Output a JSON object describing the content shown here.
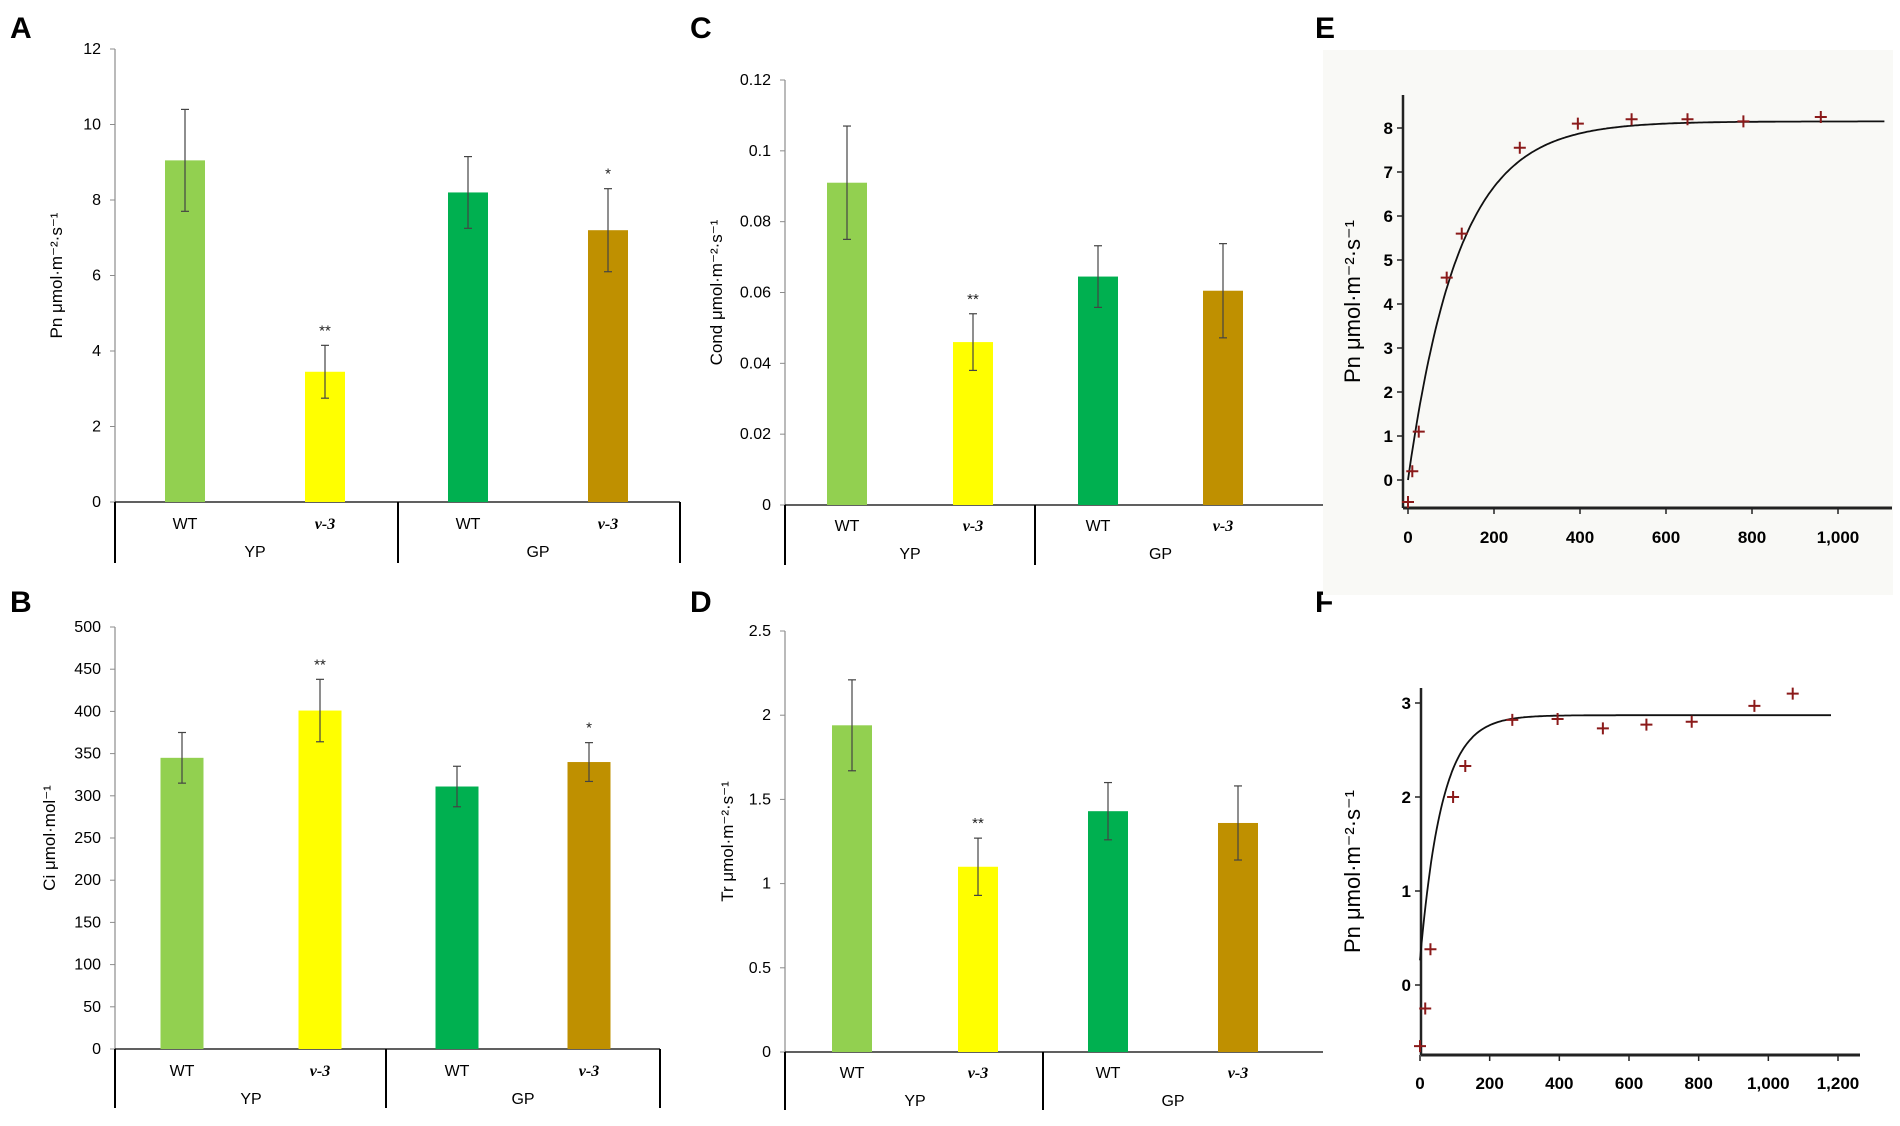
{
  "chart_data": [
    {
      "panel": "A",
      "type": "bar",
      "ylabel": "Pn μmol·m⁻²·s⁻¹",
      "ylim": [
        0,
        12
      ],
      "yticks": [
        0,
        2,
        4,
        6,
        8,
        10,
        12
      ],
      "groups": [
        "YP",
        "GP"
      ],
      "bars": [
        {
          "group": "YP",
          "label": "WT",
          "italic": false,
          "value": 9.05,
          "error": 1.35,
          "color": "#92d050",
          "sig": ""
        },
        {
          "group": "YP",
          "label": "v-3",
          "italic": true,
          "value": 3.45,
          "error": 0.7,
          "color": "#ffff00",
          "sig": "**"
        },
        {
          "group": "GP",
          "label": "WT",
          "italic": false,
          "value": 8.2,
          "error": 0.95,
          "color": "#00b050",
          "sig": ""
        },
        {
          "group": "GP",
          "label": "v-3",
          "italic": true,
          "value": 7.2,
          "error": 1.1,
          "color": "#bf9000",
          "sig": "*"
        }
      ]
    },
    {
      "panel": "B",
      "type": "bar",
      "ylabel": "Ci μmol·mol⁻¹",
      "ylim": [
        0,
        500
      ],
      "yticks": [
        0,
        50,
        100,
        150,
        200,
        250,
        300,
        350,
        400,
        450,
        500
      ],
      "groups": [
        "YP",
        "GP"
      ],
      "bars": [
        {
          "group": "YP",
          "label": "WT",
          "italic": false,
          "value": 345,
          "error": 30,
          "color": "#92d050",
          "sig": ""
        },
        {
          "group": "YP",
          "label": "v-3",
          "italic": true,
          "value": 401,
          "error": 37,
          "color": "#ffff00",
          "sig": "**"
        },
        {
          "group": "GP",
          "label": "WT",
          "italic": false,
          "value": 311,
          "error": 24,
          "color": "#00b050",
          "sig": ""
        },
        {
          "group": "GP",
          "label": "v-3",
          "italic": true,
          "value": 340,
          "error": 23,
          "color": "#bf9000",
          "sig": "*"
        }
      ]
    },
    {
      "panel": "C",
      "type": "bar",
      "ylabel": "Cond μmol·m⁻²·s⁻¹",
      "ylim": [
        0,
        0.12
      ],
      "yticks": [
        "0",
        "0.02",
        "0.04",
        "0.06",
        "0.08",
        "0.1",
        "0.12"
      ],
      "groups": [
        "YP",
        "GP"
      ],
      "bars": [
        {
          "group": "YP",
          "label": "WT",
          "italic": false,
          "value": 0.091,
          "error": 0.016,
          "color": "#92d050",
          "sig": ""
        },
        {
          "group": "YP",
          "label": "v-3",
          "italic": true,
          "value": 0.046,
          "error": 0.008,
          "color": "#ffff00",
          "sig": "**"
        },
        {
          "group": "GP",
          "label": "WT",
          "italic": false,
          "value": 0.0645,
          "error": 0.0087,
          "color": "#00b050",
          "sig": ""
        },
        {
          "group": "GP",
          "label": "v-3",
          "italic": true,
          "value": 0.0605,
          "error": 0.0133,
          "color": "#bf9000",
          "sig": ""
        }
      ]
    },
    {
      "panel": "D",
      "type": "bar",
      "ylabel": "Tr μmol·m⁻²·s⁻¹",
      "ylim": [
        0,
        2.5
      ],
      "yticks": [
        "0",
        "0.5",
        "1",
        "1.5",
        "2",
        "2.5"
      ],
      "groups": [
        "YP",
        "GP"
      ],
      "bars": [
        {
          "group": "YP",
          "label": "WT",
          "italic": false,
          "value": 1.94,
          "error": 0.27,
          "color": "#92d050",
          "sig": ""
        },
        {
          "group": "YP",
          "label": "v-3",
          "italic": true,
          "value": 1.1,
          "error": 0.17,
          "color": "#ffff00",
          "sig": "**"
        },
        {
          "group": "GP",
          "label": "WT",
          "italic": false,
          "value": 1.43,
          "error": 0.17,
          "color": "#00b050",
          "sig": ""
        },
        {
          "group": "GP",
          "label": "v-3",
          "italic": true,
          "value": 1.36,
          "error": 0.22,
          "color": "#bf9000",
          "sig": ""
        }
      ]
    },
    {
      "panel": "E",
      "type": "scatter",
      "ylabel": "Pn μmol·m⁻²·s⁻¹",
      "xlim": [
        0,
        1100
      ],
      "ylim": [
        -0.55,
        8.4
      ],
      "xticks": [
        "0",
        "200",
        "400",
        "600",
        "800",
        "1,000"
      ],
      "xtick_values": [
        0,
        200,
        400,
        600,
        800,
        1000
      ],
      "yticks": [
        0,
        1,
        2,
        3,
        4,
        5,
        6,
        7,
        8
      ],
      "points": [
        [
          0,
          -0.5
        ],
        [
          10,
          0.2
        ],
        [
          25,
          1.1
        ],
        [
          90,
          4.6
        ],
        [
          125,
          5.6
        ],
        [
          260,
          7.55
        ],
        [
          395,
          8.1
        ],
        [
          520,
          8.2
        ],
        [
          650,
          8.2
        ],
        [
          780,
          8.15
        ],
        [
          960,
          8.25
        ]
      ],
      "fit": {
        "model": "Pmax*(1-exp(-k*(x-x0)))",
        "Pmax": 8.15,
        "k": 0.0085,
        "x0": 0
      },
      "marker_color": "#8b1a1a"
    },
    {
      "panel": "F",
      "type": "scatter",
      "ylabel": "Pn μmol·m⁻²·s⁻¹",
      "xlim": [
        0,
        1260
      ],
      "ylim": [
        -0.7,
        3.15
      ],
      "xticks": [
        "0",
        "200",
        "400",
        "600",
        "800",
        "1,000",
        "1,200"
      ],
      "xtick_values": [
        0,
        200,
        400,
        600,
        800,
        1000,
        1200
      ],
      "yticks": [
        0,
        1,
        2,
        3
      ],
      "points": [
        [
          0,
          -0.65
        ],
        [
          15,
          -0.25
        ],
        [
          30,
          0.38
        ],
        [
          95,
          2.0
        ],
        [
          130,
          2.33
        ],
        [
          265,
          2.82
        ],
        [
          395,
          2.83
        ],
        [
          525,
          2.73
        ],
        [
          650,
          2.77
        ],
        [
          780,
          2.8
        ],
        [
          960,
          2.97
        ],
        [
          1070,
          3.1
        ]
      ],
      "fit": {
        "model": "Pmax*(1-exp(-k*(x-x0)))",
        "Pmax": 2.87,
        "k": 0.016,
        "x0": -6
      },
      "marker_color": "#8b1a1a"
    }
  ],
  "panel_letters": [
    "A",
    "B",
    "C",
    "D",
    "E",
    "F"
  ]
}
